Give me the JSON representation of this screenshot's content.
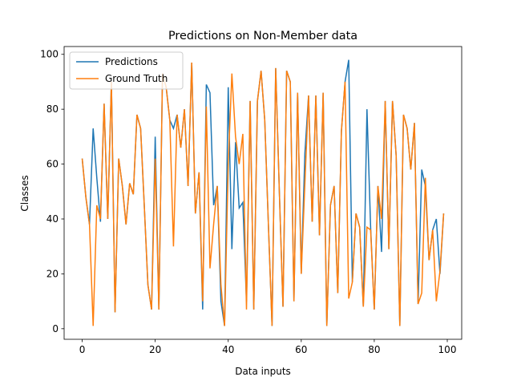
{
  "chart_data": {
    "type": "line",
    "title": "Predictions on Non-Member data",
    "x_label": "Data inputs",
    "y_label": "Classes",
    "x": [
      0,
      1,
      2,
      3,
      4,
      5,
      6,
      7,
      8,
      9,
      10,
      11,
      12,
      13,
      14,
      15,
      16,
      17,
      18,
      19,
      20,
      21,
      22,
      23,
      24,
      25,
      26,
      27,
      28,
      29,
      30,
      31,
      32,
      33,
      34,
      35,
      36,
      37,
      38,
      39,
      40,
      41,
      42,
      43,
      44,
      45,
      46,
      47,
      48,
      49,
      50,
      51,
      52,
      53,
      54,
      55,
      56,
      57,
      58,
      59,
      60,
      61,
      62,
      63,
      64,
      65,
      66,
      67,
      68,
      69,
      70,
      71,
      72,
      73,
      74,
      75,
      76,
      77,
      78,
      79,
      80,
      81,
      82,
      83,
      84,
      85,
      86,
      87,
      88,
      89,
      90,
      91,
      92,
      93,
      94,
      95,
      96,
      97,
      98,
      99
    ],
    "series": [
      {
        "name": "Predictions",
        "color": "#1f77b4",
        "values": [
          62,
          48,
          38,
          73,
          55,
          39,
          82,
          40,
          90,
          6,
          62,
          52,
          38,
          53,
          49,
          78,
          73,
          45,
          16,
          7,
          70,
          7,
          93,
          88,
          76,
          73,
          78,
          66,
          80,
          52,
          97,
          42,
          57,
          7,
          89,
          86,
          45,
          52,
          10,
          1,
          88,
          29,
          68,
          44,
          46,
          10,
          83,
          7,
          83,
          94,
          76,
          38,
          1,
          95,
          50,
          8,
          94,
          90,
          10,
          86,
          20,
          64,
          85,
          39,
          85,
          34,
          86,
          1,
          45,
          52,
          13,
          72,
          90,
          98,
          17,
          42,
          37,
          8,
          80,
          37,
          7,
          52,
          28,
          83,
          29,
          83,
          63,
          1,
          78,
          73,
          58,
          75,
          9,
          58,
          52,
          25,
          36,
          40,
          20,
          42
        ]
      },
      {
        "name": "Ground Truth",
        "color": "#ff7f0e",
        "values": [
          62,
          48,
          38,
          1,
          45,
          40,
          82,
          40,
          90,
          6,
          62,
          52,
          38,
          53,
          49,
          78,
          73,
          45,
          16,
          7,
          62,
          7,
          93,
          88,
          76,
          30,
          78,
          66,
          80,
          52,
          97,
          42,
          57,
          10,
          81,
          22,
          38,
          52,
          16,
          1,
          60,
          93,
          70,
          60,
          71,
          7,
          83,
          7,
          83,
          94,
          76,
          38,
          1,
          95,
          50,
          8,
          94,
          90,
          10,
          86,
          20,
          53,
          85,
          39,
          85,
          34,
          86,
          1,
          45,
          52,
          13,
          72,
          90,
          11,
          17,
          42,
          37,
          8,
          37,
          36,
          7,
          52,
          40,
          83,
          29,
          83,
          63,
          1,
          78,
          73,
          58,
          75,
          9,
          13,
          55,
          25,
          36,
          10,
          21,
          42
        ]
      }
    ],
    "xlim": [
      -4.95,
      103.95
    ],
    "xticks": [
      0,
      20,
      40,
      60,
      80,
      100
    ],
    "ylim": [
      -3.85,
      102.85
    ],
    "yticks": [
      0,
      20,
      40,
      60,
      80,
      100
    ],
    "legend": "upper left"
  }
}
